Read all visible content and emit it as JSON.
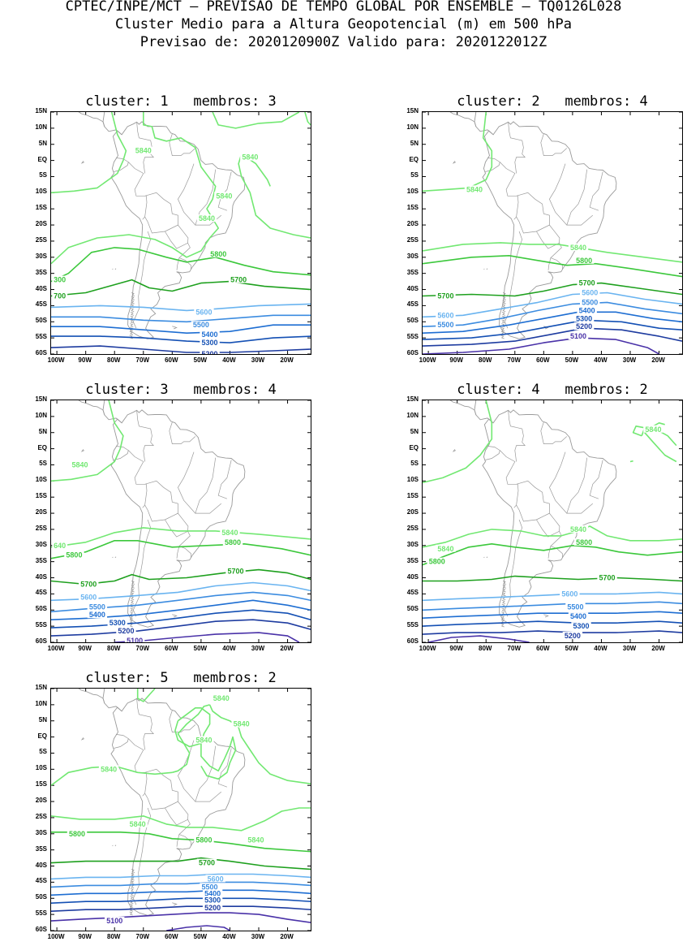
{
  "header": {
    "line1": "CPTEC/INPE/MCT — PREVISAO DE TEMPO GLOBAL POR ENSEMBLE — TQ0126L028",
    "line2": "Cluster Medio para a Altura Geopotencial (m) em 500 hPa",
    "line3": "Previsao de: 2020120900Z    Valido para: 2020122012Z"
  },
  "axes": {
    "lat_labels": [
      "15N",
      "10N",
      "5N",
      "EQ",
      "5S",
      "10S",
      "15S",
      "20S",
      "25S",
      "30S",
      "35S",
      "40S",
      "45S",
      "50S",
      "55S",
      "60S"
    ],
    "lon_labels": [
      "100W",
      "90W",
      "80W",
      "70W",
      "60W",
      "50W",
      "40W",
      "30W",
      "20W"
    ]
  },
  "colors": {
    "c5840": "#72e872",
    "c5800": "#3cc83c",
    "c5700": "#1ea01e",
    "c5600": "#6ab4f0",
    "c5500": "#3c8ce0",
    "c5400": "#1e6ed2",
    "c5300": "#1450b4",
    "c5200": "#1e3ca0",
    "c5100": "#4a32a8",
    "coast": "#9a9a9a"
  },
  "panels": [
    {
      "title": "cluster: 1   membros: 3",
      "contours": [
        {
          "level": "5840",
          "labels": [
            {
              "t": "5840",
              "x": -70,
              "y": 3
            },
            {
              "t": "5840",
              "x": -42,
              "y": -11
            },
            {
              "t": "5840",
              "x": -48,
              "y": -18
            },
            {
              "t": "5840",
              "x": -33,
              "y": 1
            }
          ]
        },
        {
          "level": "5800",
          "labels": [
            {
              "t": "5800",
              "x": -44,
              "y": -29
            },
            {
              "t": "300",
              "x": -99,
              "y": -37
            }
          ]
        },
        {
          "level": "5700",
          "labels": [
            {
              "t": "5700",
              "x": -37,
              "y": -37
            },
            {
              "t": "700",
              "x": -99,
              "y": -42
            }
          ]
        },
        {
          "level": "5600",
          "labels": [
            {
              "t": "5600",
              "x": -49,
              "y": -47
            }
          ]
        },
        {
          "level": "5500",
          "labels": [
            {
              "t": "5500",
              "x": -50,
              "y": -51
            }
          ]
        },
        {
          "level": "5400",
          "labels": [
            {
              "t": "5400",
              "x": -47,
              "y": -54
            }
          ]
        },
        {
          "level": "5300",
          "labels": [
            {
              "t": "5300",
              "x": -47,
              "y": -56.5
            }
          ]
        },
        {
          "level": "5200",
          "labels": [
            {
              "t": "5200",
              "x": -47,
              "y": -60
            }
          ]
        }
      ]
    },
    {
      "title": "cluster: 2   membros: 4",
      "contours": [
        {
          "level": "5840",
          "labels": [
            {
              "t": "5840",
              "x": -84,
              "y": -9
            },
            {
              "t": "5840",
              "x": -48,
              "y": -27
            }
          ]
        },
        {
          "level": "5800",
          "labels": [
            {
              "t": "5800",
              "x": -46,
              "y": -31
            }
          ]
        },
        {
          "level": "5700",
          "labels": [
            {
              "t": "5700",
              "x": -94,
              "y": -42
            },
            {
              "t": "5700",
              "x": -45,
              "y": -38
            }
          ]
        },
        {
          "level": "5600",
          "labels": [
            {
              "t": "5600",
              "x": -94,
              "y": -48
            },
            {
              "t": "5600",
              "x": -44,
              "y": -41
            }
          ]
        },
        {
          "level": "5500",
          "labels": [
            {
              "t": "5500",
              "x": -94,
              "y": -51
            },
            {
              "t": "5500",
              "x": -44,
              "y": -44
            }
          ]
        },
        {
          "level": "5400",
          "labels": [
            {
              "t": "5400",
              "x": -45,
              "y": -46.5
            }
          ]
        },
        {
          "level": "5300",
          "labels": [
            {
              "t": "5300",
              "x": -46,
              "y": -49
            }
          ]
        },
        {
          "level": "5200",
          "labels": [
            {
              "t": "5200",
              "x": -46,
              "y": -51.5
            }
          ]
        },
        {
          "level": "5100",
          "labels": [
            {
              "t": "5100",
              "x": -48,
              "y": -54.5
            }
          ]
        }
      ]
    },
    {
      "title": "cluster: 3   membros: 4",
      "contours": [
        {
          "level": "5840",
          "labels": [
            {
              "t": "5840",
              "x": -92,
              "y": -5
            },
            {
              "t": "640",
              "x": -99,
              "y": -30
            },
            {
              "t": "5840",
              "x": -40,
              "y": -26
            }
          ]
        },
        {
          "level": "5800",
          "labels": [
            {
              "t": "5800",
              "x": -94,
              "y": -33
            },
            {
              "t": "5800",
              "x": -39,
              "y": -29
            }
          ]
        },
        {
          "level": "5700",
          "labels": [
            {
              "t": "5700",
              "x": -89,
              "y": -42
            },
            {
              "t": "5700",
              "x": -38,
              "y": -38
            }
          ]
        },
        {
          "level": "5600",
          "labels": [
            {
              "t": "5600",
              "x": -89,
              "y": -46
            }
          ]
        },
        {
          "level": "5500",
          "labels": [
            {
              "t": "5500",
              "x": -86,
              "y": -49
            }
          ]
        },
        {
          "level": "5400",
          "labels": [
            {
              "t": "5400",
              "x": -86,
              "y": -51.5
            }
          ]
        },
        {
          "level": "5300",
          "labels": [
            {
              "t": "5300",
              "x": -79,
              "y": -54
            }
          ]
        },
        {
          "level": "5200",
          "labels": [
            {
              "t": "5200",
              "x": -76,
              "y": -56.5
            }
          ]
        },
        {
          "level": "5100",
          "labels": [
            {
              "t": "5100",
              "x": -73,
              "y": -59.5
            }
          ]
        }
      ]
    },
    {
      "title": "cluster: 4   membros: 2",
      "contours": [
        {
          "level": "5840",
          "labels": [
            {
              "t": "5840",
              "x": -94,
              "y": -31
            },
            {
              "t": "5840",
              "x": -48,
              "y": -25
            },
            {
              "t": "5840",
              "x": -22,
              "y": 6
            }
          ]
        },
        {
          "level": "5800",
          "labels": [
            {
              "t": "5800",
              "x": -97,
              "y": -35
            },
            {
              "t": "5800",
              "x": -46,
              "y": -29
            }
          ]
        },
        {
          "level": "5700",
          "labels": [
            {
              "t": "5700",
              "x": -38,
              "y": -40
            }
          ]
        },
        {
          "level": "5600",
          "labels": [
            {
              "t": "5600",
              "x": -51,
              "y": -45
            }
          ]
        },
        {
          "level": "5500",
          "labels": [
            {
              "t": "5500",
              "x": -49,
              "y": -49
            }
          ]
        },
        {
          "level": "5400",
          "labels": [
            {
              "t": "5400",
              "x": -48,
              "y": -52
            }
          ]
        },
        {
          "level": "5300",
          "labels": [
            {
              "t": "5300",
              "x": -47,
              "y": -55
            }
          ]
        },
        {
          "level": "5200",
          "labels": [
            {
              "t": "5200",
              "x": -50,
              "y": -58
            }
          ]
        }
      ]
    },
    {
      "title": "cluster: 5   membros: 2",
      "contours": [
        {
          "level": "5840",
          "labels": [
            {
              "t": "5840",
              "x": -43,
              "y": 12
            },
            {
              "t": "5840",
              "x": -36,
              "y": 4
            },
            {
              "t": "5840",
              "x": -49,
              "y": -1
            },
            {
              "t": "5840",
              "x": -82,
              "y": -10
            },
            {
              "t": "5840",
              "x": -72,
              "y": -27
            },
            {
              "t": "5840",
              "x": -31,
              "y": -32
            }
          ]
        },
        {
          "level": "5800",
          "labels": [
            {
              "t": "5800",
              "x": -93,
              "y": -30
            },
            {
              "t": "5800",
              "x": -49,
              "y": -32
            }
          ]
        },
        {
          "level": "5700",
          "labels": [
            {
              "t": "5700",
              "x": -48,
              "y": -39
            }
          ]
        },
        {
          "level": "5600",
          "labels": [
            {
              "t": "5600",
              "x": -45,
              "y": -44
            }
          ]
        },
        {
          "level": "5500",
          "labels": [
            {
              "t": "5500",
              "x": -47,
              "y": -46.5
            }
          ]
        },
        {
          "level": "5400",
          "labels": [
            {
              "t": "5400",
              "x": -46,
              "y": -48.5
            }
          ]
        },
        {
          "level": "5300",
          "labels": [
            {
              "t": "5300",
              "x": -46,
              "y": -50.5
            }
          ]
        },
        {
          "level": "5200",
          "labels": [
            {
              "t": "5200",
              "x": -46,
              "y": -53
            }
          ]
        },
        {
          "level": "5100",
          "labels": [
            {
              "t": "5100",
              "x": -80,
              "y": -57
            }
          ]
        }
      ]
    }
  ]
}
